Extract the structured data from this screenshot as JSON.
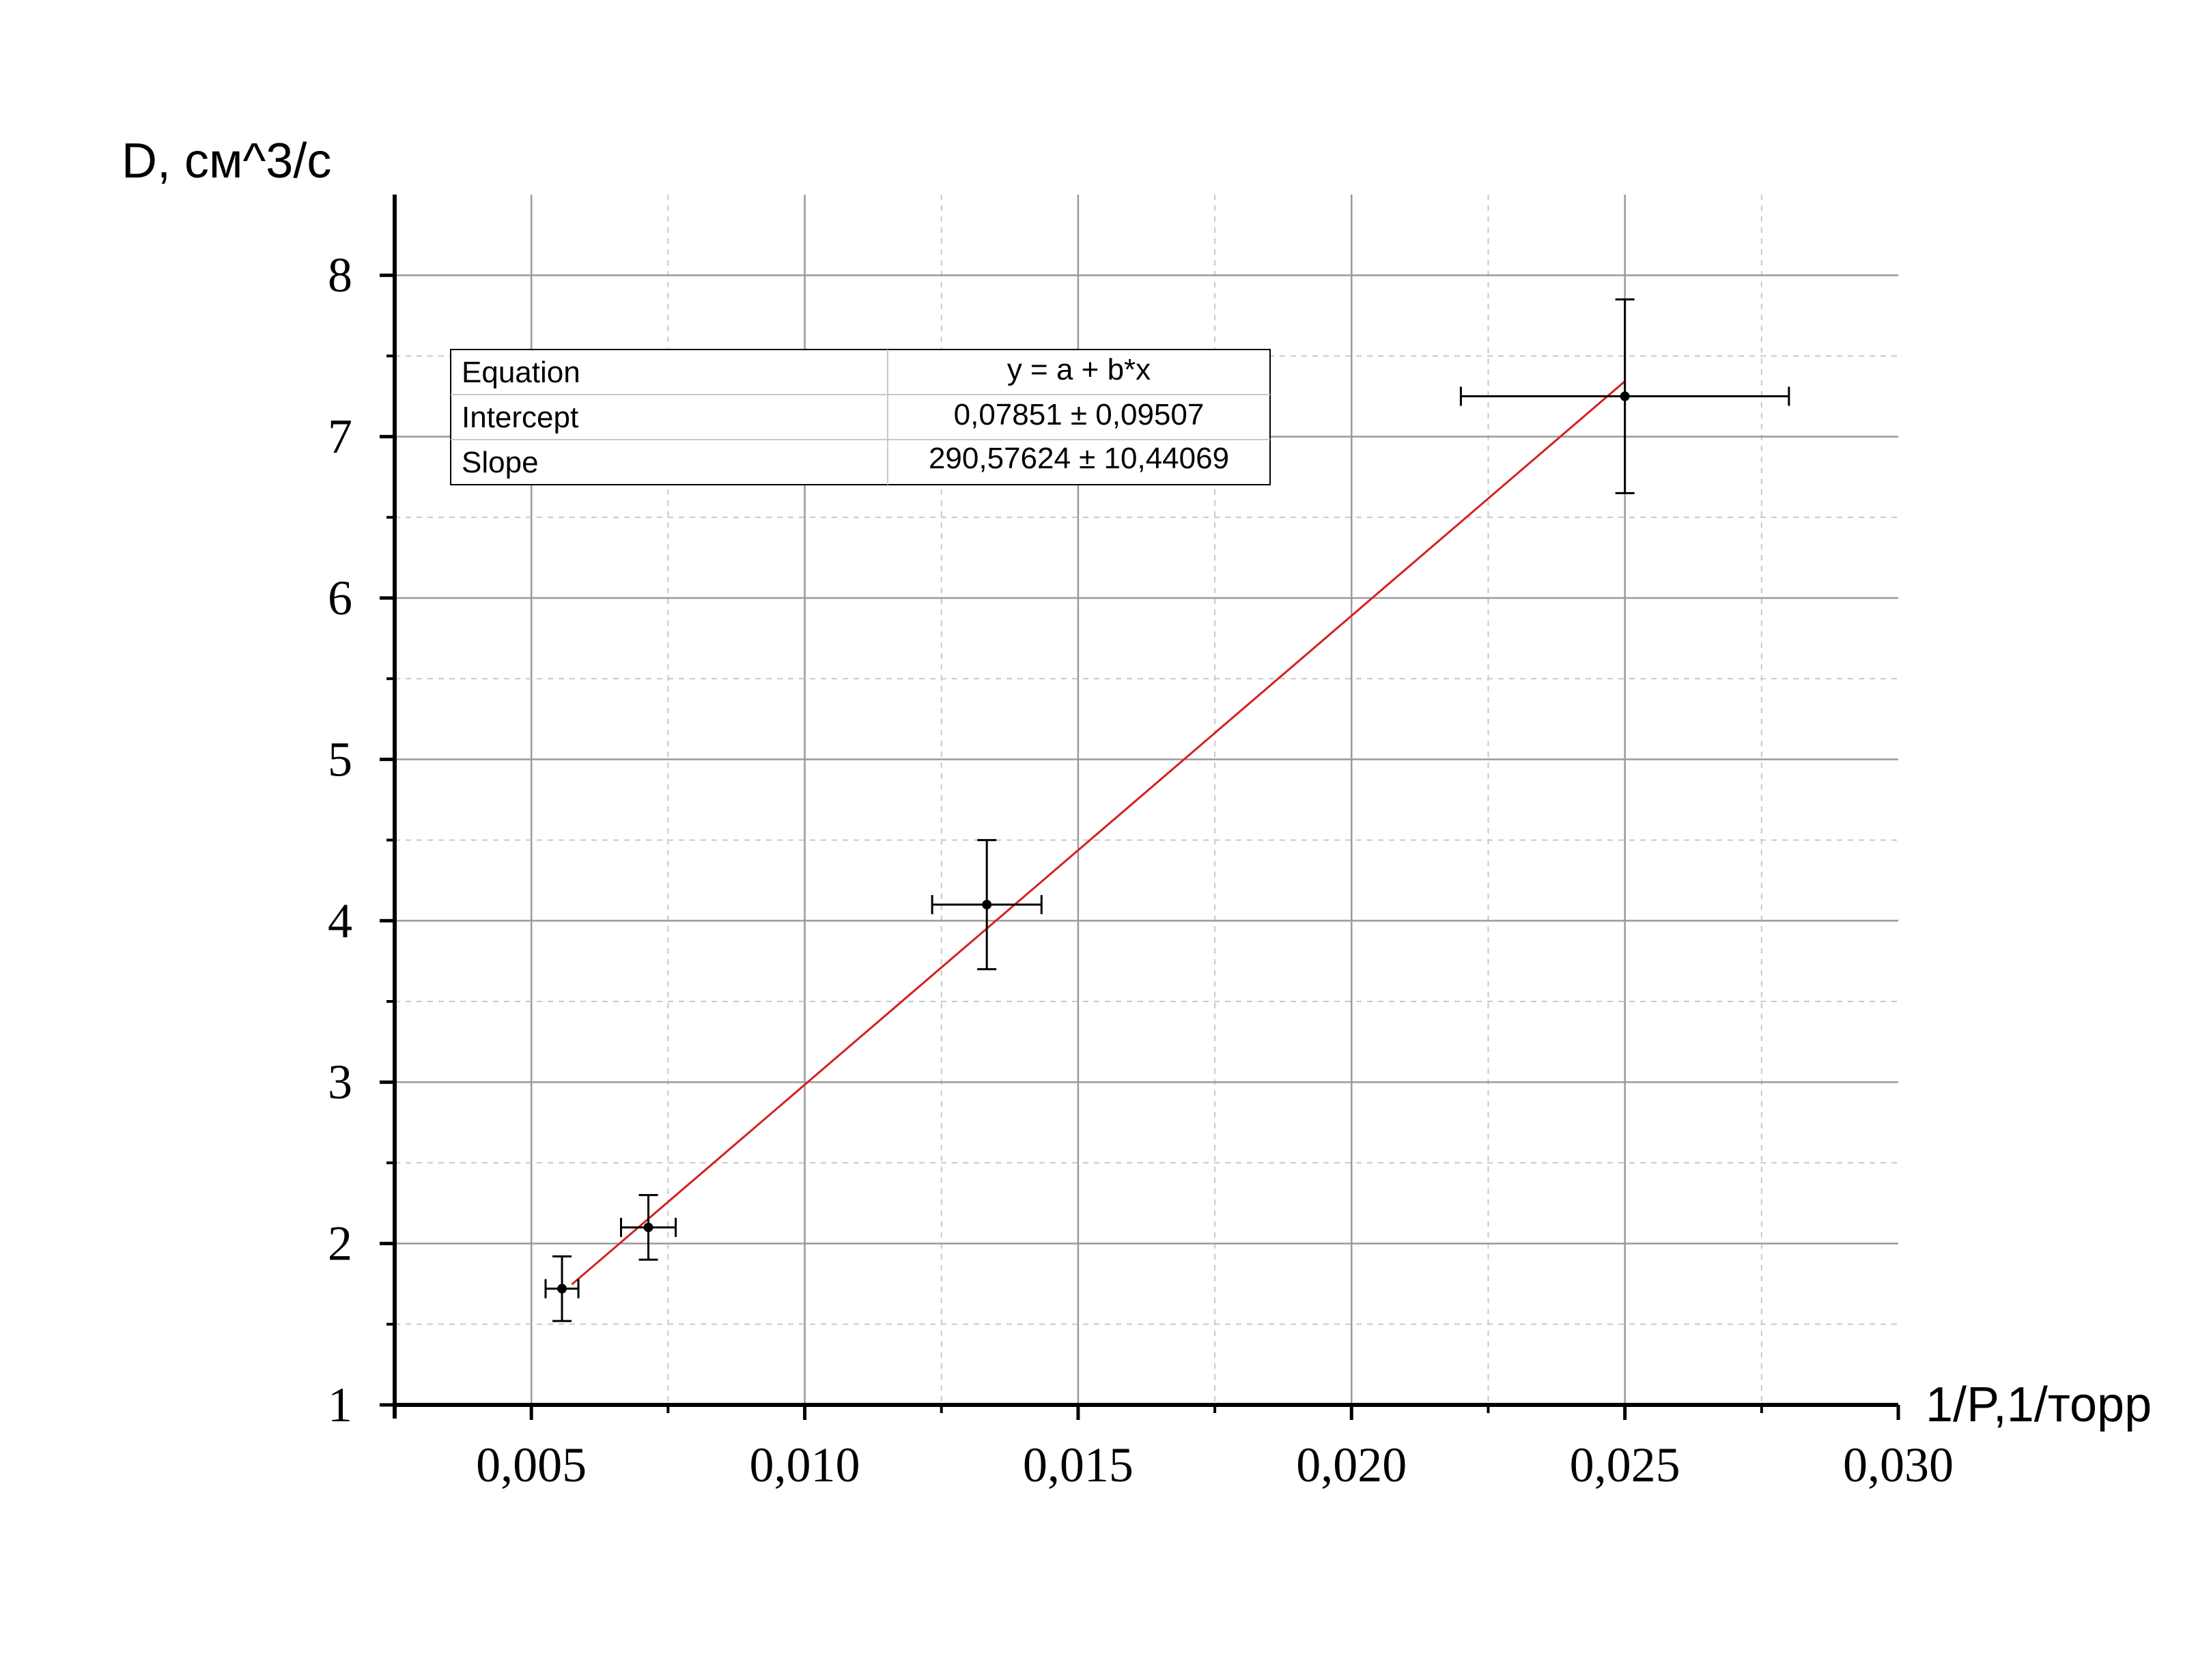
{
  "chart_data": {
    "type": "scatter",
    "xlabel": "1/P,1/торр",
    "ylabel": "D, см^3/с",
    "xlim": [
      0.0025,
      0.03
    ],
    "ylim": [
      1,
      8.5
    ],
    "xticks": [
      0.005,
      0.01,
      0.015,
      0.02,
      0.025,
      0.03
    ],
    "xtick_labels": [
      "0,005",
      "0,010",
      "0,015",
      "0,020",
      "0,025",
      "0,030"
    ],
    "yticks": [
      1,
      2,
      3,
      4,
      5,
      6,
      7,
      8
    ],
    "ytick_labels": [
      "1",
      "2",
      "3",
      "4",
      "5",
      "6",
      "7",
      "8"
    ],
    "grid": true,
    "points": [
      {
        "x": 0.00556,
        "y": 1.72,
        "xerr": 0.0003,
        "yerr": 0.2
      },
      {
        "x": 0.00714,
        "y": 2.1,
        "xerr": 0.0005,
        "yerr": 0.2
      },
      {
        "x": 0.01333,
        "y": 4.1,
        "xerr": 0.001,
        "yerr": 0.4
      },
      {
        "x": 0.025,
        "y": 7.25,
        "xerr": 0.003,
        "yerr": 0.6
      }
    ],
    "fit": {
      "intercept": 0.07851,
      "slope": 290.57624,
      "x_range": [
        0.00574,
        0.025
      ],
      "color": "#d42020"
    },
    "fit_table": {
      "rows": [
        {
          "label": "Equation",
          "value": "y = a + b*x"
        },
        {
          "label": "Intercept",
          "value": "0,07851 ± 0,09507"
        },
        {
          "label": "Slope",
          "value": "290,57624 ± 10,44069"
        }
      ]
    }
  }
}
